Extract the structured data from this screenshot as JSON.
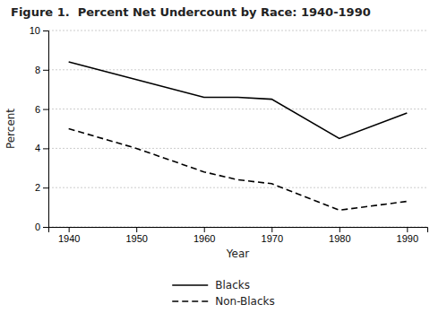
{
  "chart_data": {
    "type": "line",
    "title": "Figure 1.  Percent Net Undercount by Race: 1940-1990",
    "xlabel": "Year",
    "ylabel": "Percent",
    "x": [
      1940,
      1950,
      1960,
      1965,
      1970,
      1980,
      1990
    ],
    "series": [
      {
        "name": "Blacks",
        "color": "#000000",
        "line_style": "solid",
        "values": [
          8.4,
          7.5,
          6.6,
          6.6,
          6.5,
          4.5,
          5.8
        ]
      },
      {
        "name": "Non-Blacks",
        "color": "#000000",
        "line_style": "dashed",
        "values": [
          5.0,
          4.0,
          2.8,
          2.4,
          2.2,
          0.85,
          1.3
        ]
      }
    ],
    "xlim": [
      1937,
      1993
    ],
    "ylim": [
      0,
      10
    ],
    "xticks": [
      1940,
      1950,
      1960,
      1970,
      1980,
      1990
    ],
    "yticks": [
      0,
      2,
      4,
      6,
      8,
      10
    ],
    "grid": "y",
    "legend": "bottom"
  }
}
